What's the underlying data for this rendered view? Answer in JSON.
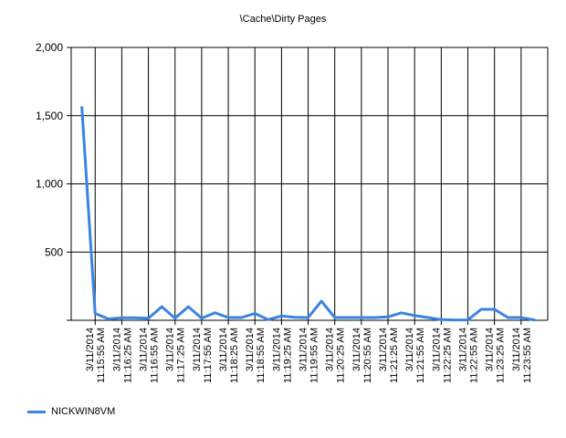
{
  "chart_data": {
    "type": "line",
    "title": "\\Cache\\Dirty Pages",
    "xlabel": "",
    "ylabel": "",
    "ylim": [
      0,
      2000
    ],
    "yticks": [
      0,
      500,
      1000,
      1500,
      2000
    ],
    "ytick_labels": [
      "",
      "500",
      "1,000",
      "1,500",
      "2,000"
    ],
    "grid": true,
    "legend_position": "bottom-left",
    "x_tick_labels": [
      {
        "date": "3/11/2014",
        "time": "11:15:55 AM"
      },
      {
        "date": "3/11/2014",
        "time": "11:16:25 AM"
      },
      {
        "date": "3/11/2014",
        "time": "11:16:55 AM"
      },
      {
        "date": "3/11/2014",
        "time": "11:17:25 AM"
      },
      {
        "date": "3/11/2014",
        "time": "11:17:55 AM"
      },
      {
        "date": "3/11/2014",
        "time": "11:18:25 AM"
      },
      {
        "date": "3/11/2014",
        "time": "11:18:55 AM"
      },
      {
        "date": "3/11/2014",
        "time": "11:19:25 AM"
      },
      {
        "date": "3/11/2014",
        "time": "11:19:55 AM"
      },
      {
        "date": "3/11/2014",
        "time": "11:20:25 AM"
      },
      {
        "date": "3/11/2014",
        "time": "11:20:55 AM"
      },
      {
        "date": "3/11/2014",
        "time": "11:21:25 AM"
      },
      {
        "date": "3/11/2014",
        "time": "11:21:55 AM"
      },
      {
        "date": "3/11/2014",
        "time": "11:22:25 AM"
      },
      {
        "date": "3/11/2014",
        "time": "11:22:55 AM"
      },
      {
        "date": "3/11/2014",
        "time": "11:23:25 AM"
      },
      {
        "date": "3/11/2014",
        "time": "11:23:55 AM"
      }
    ],
    "x_range": [
      0,
      17
    ],
    "series": [
      {
        "name": "NICKWIN8VM",
        "color": "#3a84e0",
        "points": [
          [
            -0.5,
            1560
          ],
          [
            0,
            50
          ],
          [
            0.5,
            10
          ],
          [
            1,
            18
          ],
          [
            1.5,
            18
          ],
          [
            2,
            15
          ],
          [
            2.5,
            100
          ],
          [
            3,
            15
          ],
          [
            3.5,
            100
          ],
          [
            4,
            15
          ],
          [
            4.5,
            55
          ],
          [
            5,
            20
          ],
          [
            5.5,
            20
          ],
          [
            6,
            50
          ],
          [
            6.5,
            5
          ],
          [
            7,
            32
          ],
          [
            7.5,
            22
          ],
          [
            8,
            20
          ],
          [
            8.5,
            140
          ],
          [
            9,
            20
          ],
          [
            9.5,
            20
          ],
          [
            10,
            20
          ],
          [
            10.5,
            20
          ],
          [
            11,
            25
          ],
          [
            11.5,
            55
          ],
          [
            12,
            35
          ],
          [
            12.5,
            20
          ],
          [
            13,
            5
          ],
          [
            13.5,
            3
          ],
          [
            14,
            3
          ],
          [
            14.5,
            80
          ],
          [
            15,
            80
          ],
          [
            15.5,
            20
          ],
          [
            16,
            20
          ],
          [
            16.5,
            3
          ]
        ]
      }
    ]
  }
}
